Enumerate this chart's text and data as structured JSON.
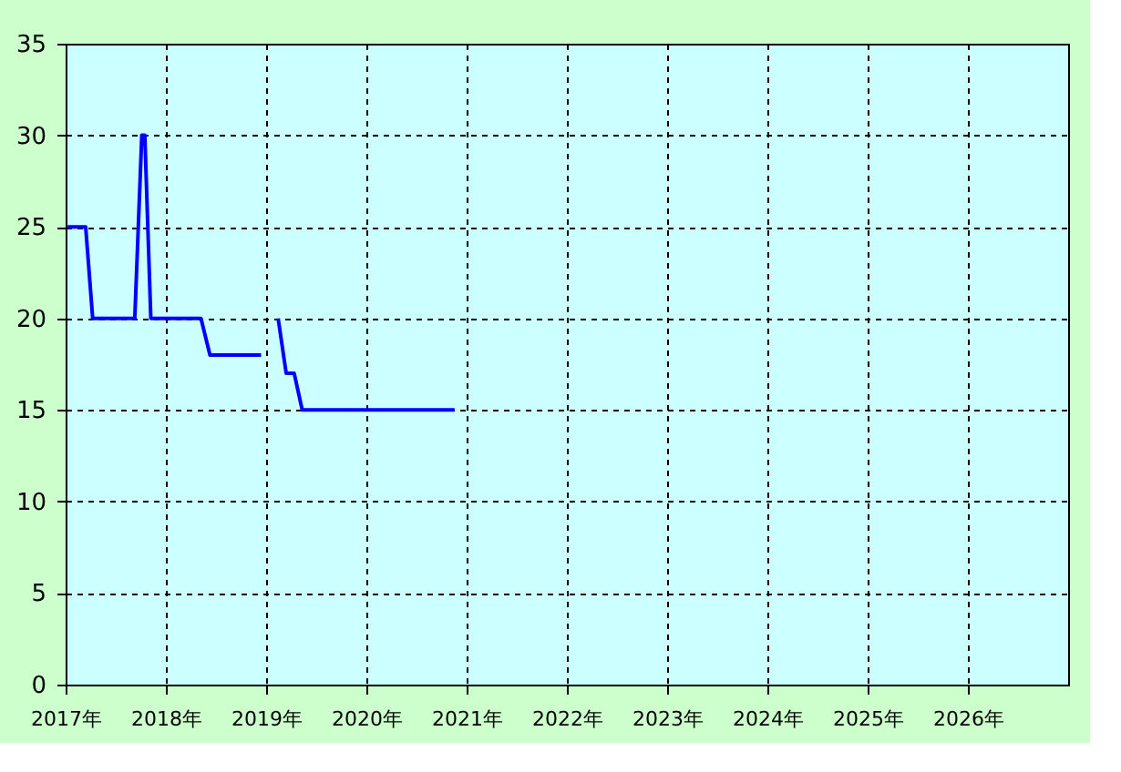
{
  "chart_data": {
    "type": "line",
    "xlim": [
      2017,
      2027
    ],
    "xticks": [
      {
        "value": 2017,
        "label": "2017年"
      },
      {
        "value": 2018,
        "label": "2018年"
      },
      {
        "value": 2019,
        "label": "2019年"
      },
      {
        "value": 2020,
        "label": "2020年"
      },
      {
        "value": 2021,
        "label": "2021年"
      },
      {
        "value": 2022,
        "label": "2022年"
      },
      {
        "value": 2023,
        "label": "2023年"
      },
      {
        "value": 2024,
        "label": "2024年"
      },
      {
        "value": 2025,
        "label": "2025年"
      },
      {
        "value": 2026,
        "label": "2026年"
      }
    ],
    "ylim": [
      0,
      35
    ],
    "yticks": [
      0,
      5,
      10,
      15,
      20,
      25,
      30,
      35
    ],
    "grid": true,
    "marker": "none",
    "line_style": "solid",
    "x": [
      2017.02,
      2017.2,
      2017.27,
      2017.69,
      2017.76,
      2017.79,
      2017.85,
      2018.35,
      2018.44,
      2018.95,
      2019.03,
      2019.12,
      2019.2,
      2019.28,
      2019.36,
      2020.88
    ],
    "series": [
      {
        "color": "#0000ff",
        "values": [
          25,
          25,
          20,
          20,
          30,
          30,
          20,
          20,
          18,
          18,
          null,
          20,
          17,
          17,
          15,
          15
        ]
      }
    ]
  }
}
